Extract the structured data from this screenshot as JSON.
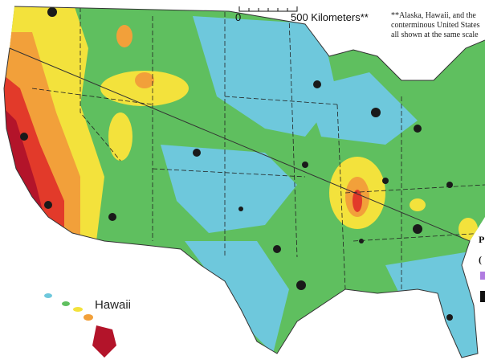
{
  "scale_bar": {
    "start": "0",
    "end": "500 Kilometers**"
  },
  "note": [
    "**Alaska, Hawaii, and the",
    "conterminous United States",
    "all shown at the same scale"
  ],
  "inset_label": "Hawaii",
  "legend_fragments": [
    "P",
    "("
  ]
}
